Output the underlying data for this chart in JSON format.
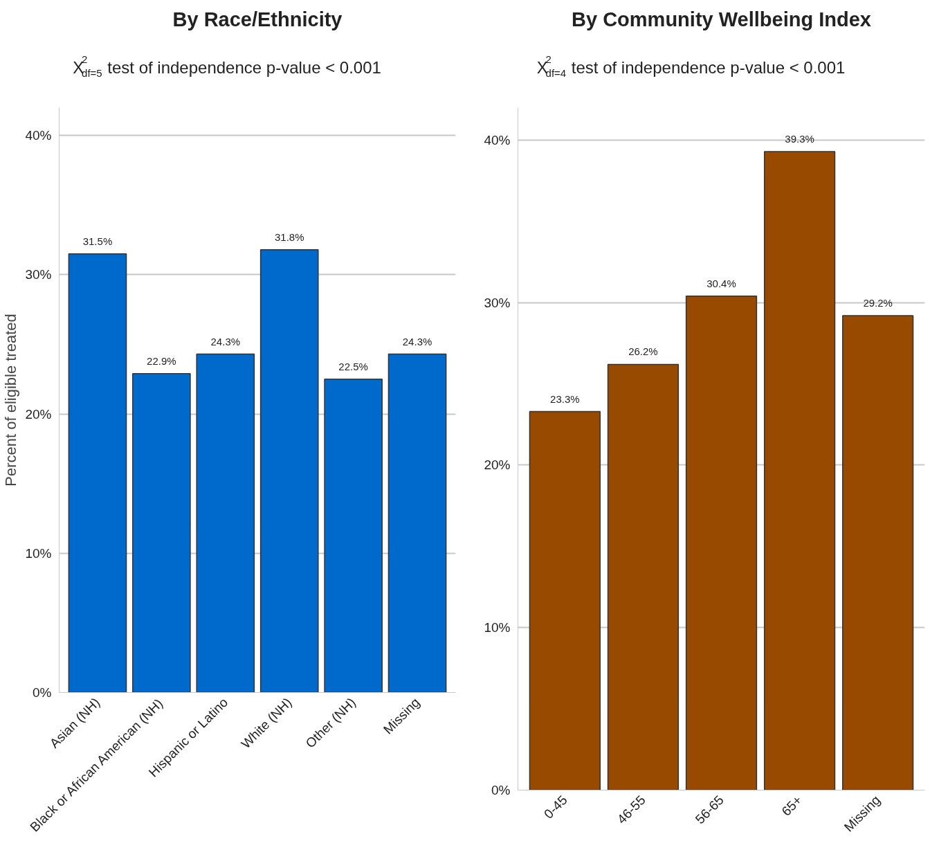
{
  "chart_data": [
    {
      "type": "bar",
      "title": "By Race/Ethnicity",
      "subtitle": "X$^{2}$$_{df=5}$ test of independence  p-value < 0.001",
      "ylabel": "Percent of eligible treated",
      "categories": [
        "Asian (NH)",
        "Black or African American (NH)",
        "Hispanic or Latino",
        "White (NH)",
        "Other (NH)",
        "Missing"
      ],
      "values": [
        31.5,
        22.9,
        24.3,
        31.8,
        22.5,
        24.3
      ],
      "value_labels": [
        "31.5%",
        "22.9%",
        "24.3%",
        "31.8%",
        "22.5%",
        "24.3%"
      ],
      "color": "#006acc",
      "ylim": [
        0,
        42
      ],
      "yticks": [
        {
          "value": 0,
          "label": "0%"
        },
        {
          "value": 10,
          "label": "10%"
        },
        {
          "value": 20,
          "label": "20%"
        },
        {
          "value": 30,
          "label": "30%"
        },
        {
          "value": 40,
          "label": "40%"
        }
      ],
      "grid": "y"
    },
    {
      "type": "bar",
      "title": "By Community Wellbeing Index",
      "subtitle": "X$^{2}$$_{df=4}$ test of independence  p-value < 0.001",
      "categories": [
        "0-45",
        "46-55",
        "56-65",
        "65+",
        "Missing"
      ],
      "values": [
        23.3,
        26.2,
        30.4,
        39.3,
        29.2
      ],
      "value_labels": [
        "23.3%",
        "26.2%",
        "30.4%",
        "39.3%",
        "29.2%"
      ],
      "color": "#984b00",
      "ylim": [
        0,
        42
      ],
      "yticks": [
        {
          "value": 0,
          "label": "0%"
        },
        {
          "value": 10,
          "label": "10%"
        },
        {
          "value": 20,
          "label": "20%"
        },
        {
          "value": 30,
          "label": "30%"
        },
        {
          "value": 40,
          "label": "40%"
        }
      ],
      "grid": "y"
    }
  ]
}
